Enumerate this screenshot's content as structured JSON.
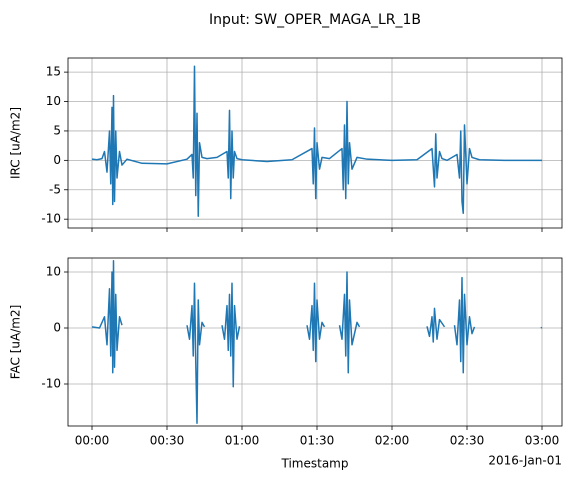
{
  "title": "Input: SW_OPER_MAGA_LR_1B",
  "chart_data": [
    {
      "type": "line",
      "ylabel": "IRC [uA/m2]",
      "color": "#1f77b4",
      "grid": true,
      "xlim": [
        -9.6,
        188
      ],
      "xticks": [
        0,
        30,
        60,
        90,
        120,
        150,
        180
      ],
      "ylim": [
        -11.5,
        17.4
      ],
      "yticks": [
        -10,
        -5,
        0,
        5,
        10,
        15
      ],
      "x": [
        0,
        2,
        4,
        5,
        6,
        7,
        7.5,
        8,
        8.3,
        8.6,
        9,
        9.5,
        10,
        11,
        12,
        14,
        20,
        30,
        38,
        40,
        40.5,
        41,
        41.5,
        42,
        42.5,
        43,
        44,
        46,
        50,
        54,
        54.5,
        55,
        55.5,
        56,
        56.5,
        57,
        58,
        60,
        70,
        80,
        88,
        88.5,
        89,
        89.5,
        90,
        91,
        92,
        95,
        100,
        100.5,
        101,
        101.5,
        102,
        102.5,
        103,
        104,
        106,
        110,
        120,
        130,
        136,
        137,
        137.5,
        138,
        139,
        140,
        142,
        146,
        147,
        147.5,
        148,
        148.5,
        149,
        150,
        151,
        152,
        155,
        165,
        180
      ],
      "values": [
        0.2,
        0.1,
        0.3,
        1.5,
        -2,
        5,
        -4,
        9,
        -7.5,
        11,
        -7,
        5,
        -3,
        1.5,
        -0.8,
        0.2,
        -0.5,
        -0.6,
        0.2,
        1,
        -3,
        16,
        -6,
        8,
        -9.5,
        3,
        0.5,
        0.3,
        0.5,
        1.5,
        -3,
        8.5,
        -6.5,
        5,
        -3,
        1.5,
        0.3,
        0.1,
        -0.2,
        0.1,
        2,
        -4,
        5.5,
        -6.5,
        3,
        -1.5,
        0.5,
        0.3,
        2,
        -5,
        6,
        -6.5,
        10,
        -4,
        3,
        -1.5,
        0.5,
        0.2,
        0,
        0.1,
        2,
        -4.5,
        4.5,
        -3,
        1.5,
        0.3,
        0,
        1,
        -3,
        5,
        -7,
        -9,
        6,
        -4,
        2,
        0.5,
        0.1,
        0,
        0
      ]
    },
    {
      "type": "line",
      "ylabel": "FAC [uA/m2]",
      "xlabel": "Timestamp",
      "x_offset_label": "2016-Jan-01",
      "color": "#1f77b4",
      "grid": true,
      "xlim": [
        -9.6,
        188
      ],
      "xticks": [
        {
          "value": 0,
          "label": "00:00"
        },
        {
          "value": 30,
          "label": "00:30"
        },
        {
          "value": 60,
          "label": "01:00"
        },
        {
          "value": 90,
          "label": "01:30"
        },
        {
          "value": 120,
          "label": "02:00"
        },
        {
          "value": 150,
          "label": "02:30"
        },
        {
          "value": 180,
          "label": "03:00"
        }
      ],
      "ylim": [
        -17.5,
        12.5
      ],
      "yticks": [
        -10,
        0,
        10
      ],
      "x": [
        0,
        3,
        5,
        6,
        7,
        7.5,
        8,
        8.3,
        8.6,
        9,
        9.5,
        10,
        11,
        12,
        12.5,
        38,
        39,
        40,
        40.5,
        41,
        41.5,
        42,
        42.5,
        43,
        44,
        45,
        45.5,
        52,
        53,
        54,
        54.5,
        55,
        55.5,
        56,
        56.5,
        57,
        58,
        59,
        59.5,
        86,
        87,
        88,
        88.5,
        89,
        89.5,
        90,
        91,
        92,
        93,
        93.5,
        99,
        100,
        101,
        101.5,
        102,
        102.5,
        103,
        104,
        106,
        107,
        107.5,
        134,
        135,
        136,
        136.5,
        137,
        138,
        139,
        141,
        141.5,
        145,
        146,
        147,
        147.5,
        148,
        148.5,
        149,
        150,
        151,
        152,
        153,
        153.5,
        179.5,
        180
      ],
      "values": [
        0.2,
        0,
        2,
        -3,
        7,
        -5,
        10,
        -8,
        12,
        -7,
        6,
        -4,
        2,
        0.5,
        null,
        0.5,
        -2,
        4,
        -5,
        8,
        -6,
        -17,
        5,
        -3,
        1,
        0.2,
        null,
        0.5,
        -2,
        4,
        -4,
        6,
        -5,
        8,
        -10.5,
        4,
        -2,
        0.3,
        null,
        0.5,
        -2,
        4,
        -4,
        8,
        -6,
        5,
        -2,
        1,
        0.2,
        null,
        0.5,
        -2,
        6,
        -5,
        10,
        -8,
        5,
        -3,
        1,
        0.2,
        null,
        0.3,
        -1.5,
        2,
        -2.5,
        3.5,
        -2,
        1.5,
        0.2,
        null,
        0.5,
        -3,
        5,
        -6,
        9,
        -8,
        6,
        -3,
        2,
        -1,
        0.2,
        null,
        0,
        0.1
      ]
    }
  ]
}
